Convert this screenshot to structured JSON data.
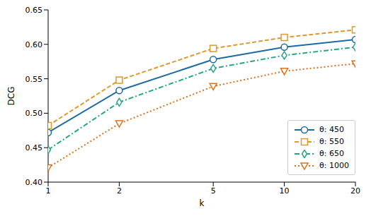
{
  "chart_data": {
    "type": "line",
    "x_label": "k",
    "y_label": "DCG",
    "x": [
      1,
      2,
      5,
      10,
      20
    ],
    "log": "x",
    "xlim": [
      1,
      20
    ],
    "xticks": [
      1,
      2,
      5,
      10,
      20
    ],
    "ylim": [
      0.4,
      0.65
    ],
    "yticks": [
      {
        "value": 0.4,
        "label": "0.40"
      },
      {
        "value": 0.45,
        "label": "0.45"
      },
      {
        "value": 0.5,
        "label": "0.50"
      },
      {
        "value": 0.55,
        "label": "0.55"
      },
      {
        "value": 0.6,
        "label": "0.60"
      },
      {
        "value": 0.65,
        "label": "0.65"
      }
    ],
    "grid": false,
    "legend": "lower right",
    "series": [
      {
        "name": "θ: 450",
        "color": "#1f6aa5",
        "marker": "circle",
        "line_style": "solid",
        "values": [
          0.472,
          0.533,
          0.578,
          0.596,
          0.607
        ]
      },
      {
        "name": "θ: 550",
        "color": "#dd9a2e",
        "marker": "square",
        "line_style": "dashed",
        "values": [
          0.482,
          0.548,
          0.594,
          0.61,
          0.621
        ]
      },
      {
        "name": "θ: 650",
        "color": "#28a487",
        "marker": "diamond",
        "line_style": "dashdot",
        "values": [
          0.447,
          0.516,
          0.565,
          0.584,
          0.596
        ]
      },
      {
        "name": "θ: 1000",
        "color": "#d9731f",
        "marker": "triangle",
        "line_style": "dotted",
        "values": [
          0.421,
          0.485,
          0.539,
          0.561,
          0.572
        ]
      }
    ]
  }
}
